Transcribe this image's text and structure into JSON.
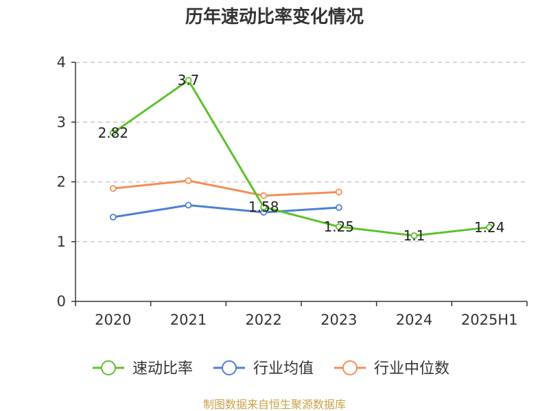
{
  "chart_data": {
    "type": "line",
    "title": "历年速动比率变化情况",
    "xlabel": "",
    "ylabel": "",
    "categories": [
      "2020",
      "2021",
      "2022",
      "2023",
      "2024",
      "2025H1"
    ],
    "ylim": [
      0,
      4
    ],
    "yticks": [
      "0",
      "1",
      "2",
      "3",
      "4"
    ],
    "grid": "horizontal-dashed",
    "legend_position": "bottom",
    "series": [
      {
        "name": "速动比率",
        "color": "#5cc12a",
        "values": [
          2.82,
          3.7,
          1.58,
          1.25,
          1.1,
          1.24
        ],
        "labels": [
          "2.82",
          "3.7",
          "1.58",
          "1.25",
          "1.1",
          "1.24"
        ]
      },
      {
        "name": "行业均值",
        "color": "#4a7fd8",
        "values": [
          1.41,
          1.61,
          1.49,
          1.57,
          null,
          null
        ]
      },
      {
        "name": "行业中位数",
        "color": "#f58c55",
        "values": [
          1.89,
          2.02,
          1.77,
          1.83,
          null,
          null
        ]
      }
    ]
  },
  "source_text": "制图数据来自恒生聚源数据库"
}
